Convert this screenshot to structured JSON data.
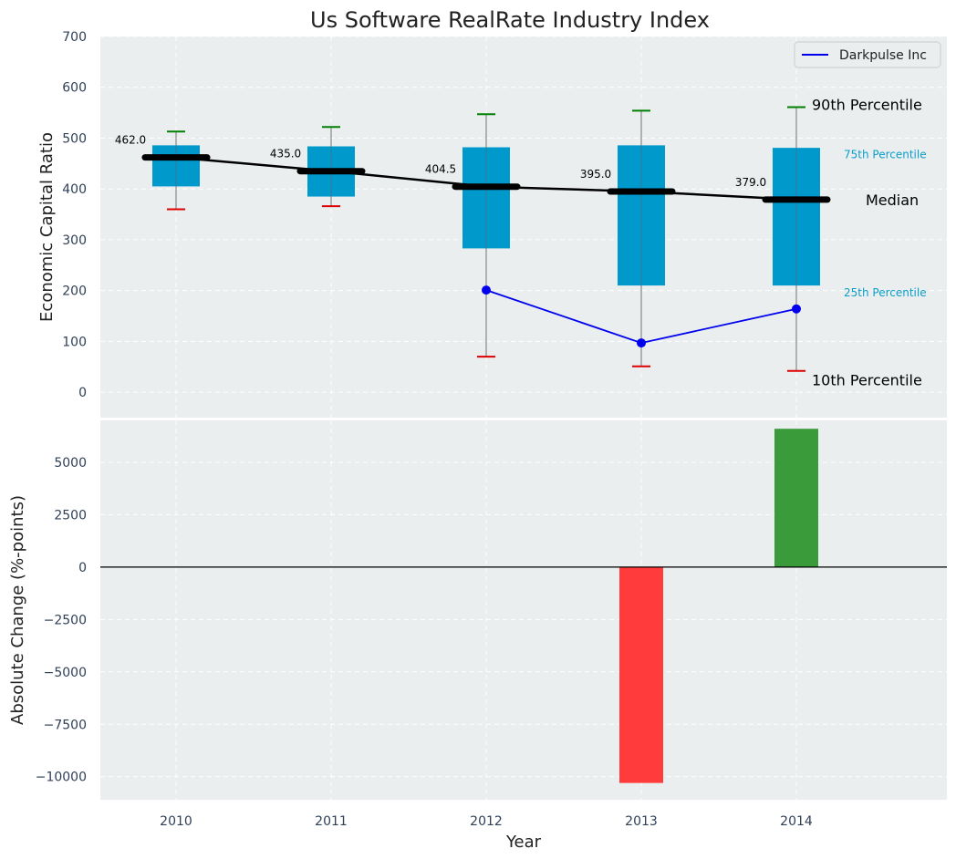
{
  "chart_data": [
    {
      "type": "box",
      "title": "Us Software RealRate Industry Index",
      "ylabel": "Economic Capital Ratio",
      "ylim": [
        -50,
        700
      ],
      "yticks": [
        0,
        100,
        200,
        300,
        400,
        500,
        600,
        700
      ],
      "categories": [
        "2010",
        "2011",
        "2012",
        "2013",
        "2014"
      ],
      "grid": true,
      "boxes": [
        {
          "year": "2010",
          "p10": 360,
          "p25": 405,
          "median": 462.0,
          "p75": 485,
          "p90": 513,
          "median_label": "462.0"
        },
        {
          "year": "2011",
          "p10": 366,
          "p25": 385,
          "median": 435.0,
          "p75": 483,
          "p90": 522,
          "median_label": "435.0"
        },
        {
          "year": "2012",
          "p10": 70,
          "p25": 283,
          "median": 404.5,
          "p75": 481,
          "p90": 547,
          "median_label": "404.5"
        },
        {
          "year": "2013",
          "p10": 51,
          "p25": 210,
          "median": 395.0,
          "p75": 485,
          "p90": 554,
          "median_label": "395.0"
        },
        {
          "year": "2014",
          "p10": 42,
          "p25": 210,
          "median": 379.0,
          "p75": 480,
          "p90": 561,
          "median_label": "379.0"
        }
      ],
      "series": [
        {
          "name": "Darkpulse Inc",
          "x": [
            "2012",
            "2013",
            "2014"
          ],
          "values": [
            201,
            97,
            164
          ],
          "color": "#0000ee"
        }
      ],
      "legend": {
        "position": "top-right",
        "entries": [
          "Darkpulse Inc"
        ]
      },
      "annotations": {
        "p90": "90th Percentile",
        "p75": "75th Percentile",
        "median": "Median",
        "p25": "25th Percentile",
        "p10": "10th Percentile"
      },
      "colors": {
        "box": "#0099cc",
        "median_line": "#000000",
        "p90_cap": "#008000",
        "p10_cap": "#dd0000",
        "background": "#eaeeee"
      }
    },
    {
      "type": "bar",
      "ylabel": "Absolute Change (%-points)",
      "xlabel": "Year",
      "ylim": [
        -11100,
        7000
      ],
      "yticks": [
        -10000,
        -7500,
        -5000,
        -2500,
        0,
        2500,
        5000
      ],
      "ytick_labels": [
        "−10000",
        "−7500",
        "−5000",
        "−2500",
        "0",
        "2500",
        "5000"
      ],
      "categories": [
        "2010",
        "2011",
        "2012",
        "2013",
        "2014"
      ],
      "values": [
        null,
        null,
        null,
        -10300,
        6600
      ],
      "colors": {
        "negative": "#ff3b3b",
        "positive": "#3a9b3a"
      }
    }
  ]
}
